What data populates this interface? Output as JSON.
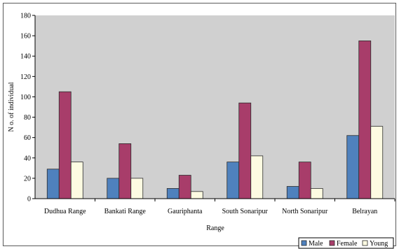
{
  "chart_data": {
    "type": "bar",
    "title": "",
    "xlabel": "Range",
    "ylabel": "N o. of individual",
    "ylim": [
      0,
      180
    ],
    "yticks": [
      0,
      20,
      40,
      60,
      80,
      100,
      120,
      140,
      160,
      180
    ],
    "categories": [
      "Dudhua Range",
      "Bankati Range",
      "Gauriphanta",
      "South Sonaripur",
      "North Sonaripur",
      "Belrayan"
    ],
    "series": [
      {
        "name": "Male",
        "color": "#4f81bd",
        "values": [
          29,
          20,
          10,
          36,
          12,
          62
        ]
      },
      {
        "name": "Female",
        "color": "#a83d6a",
        "values": [
          105,
          54,
          23,
          94,
          36,
          155
        ]
      },
      {
        "name": "Young",
        "color": "#fdfbe2",
        "values": [
          36,
          20,
          7,
          42,
          10,
          71
        ]
      }
    ],
    "grid": false,
    "plot_background": "#d0d0d0",
    "legend_position": "bottom-right"
  }
}
